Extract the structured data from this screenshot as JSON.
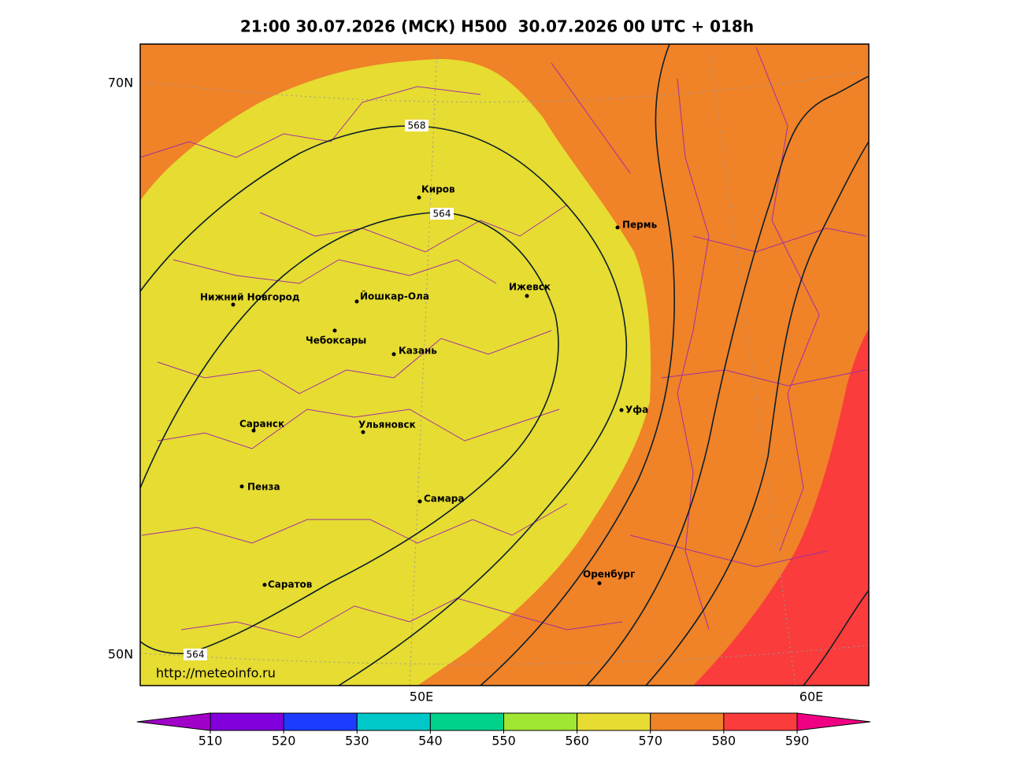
{
  "title": "21:00 30.07.2026 (МСК) H500  30.07.2026 00 UTC + 018h",
  "map": {
    "lat_labels": [
      "70N",
      "50N"
    ],
    "lon_labels": [
      "50E",
      "60E"
    ],
    "cities": [
      "Киров",
      "Пермь",
      "Нижний Новгород",
      "Йошкар-Ола",
      "Ижевск",
      "Чебоксары",
      "Казань",
      "Уфа",
      "Саранск",
      "Ульяновск",
      "Пенза",
      "Самара",
      "Оренбург",
      "Саратов"
    ],
    "contour_labels": [
      "568",
      "564",
      "564"
    ],
    "url": "http://meteoinfo.ru"
  },
  "colorbar": {
    "levels": [
      510,
      520,
      530,
      540,
      550,
      560,
      570,
      580,
      590
    ],
    "colors": [
      "#a000c8",
      "#8200dc",
      "#1e3cff",
      "#00c8c8",
      "#00d28c",
      "#a0e632",
      "#e6dc32",
      "#f08228",
      "#fa3c3c",
      "#f00082"
    ]
  }
}
